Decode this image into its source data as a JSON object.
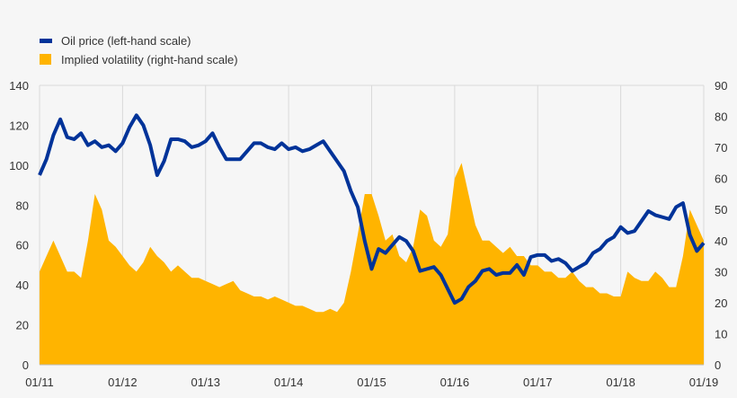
{
  "chart_data": {
    "type": "line+area",
    "title": "",
    "legend_position": "top-left",
    "grid": true,
    "x_tick_labels": [
      "01/11",
      "01/12",
      "01/13",
      "01/14",
      "01/15",
      "01/16",
      "01/17",
      "01/18",
      "01/19"
    ],
    "x_start": "2011-01",
    "x_end": "2019-01",
    "left_axis": {
      "ylim": [
        0,
        140
      ],
      "ticks": [
        "0",
        "20",
        "40",
        "60",
        "80",
        "100",
        "120",
        "140"
      ]
    },
    "right_axis": {
      "ylim": [
        0,
        90
      ],
      "ticks": [
        "0",
        "10",
        "20",
        "30",
        "40",
        "50",
        "60",
        "70",
        "80",
        "90"
      ]
    },
    "series": [
      {
        "name": "Oil price (left-hand scale)",
        "type": "line",
        "axis": "left",
        "color": "#003399",
        "values": [
          95,
          103,
          115,
          123,
          114,
          113,
          116,
          110,
          112,
          109,
          110,
          107,
          111,
          119,
          125,
          120,
          110,
          95,
          102,
          113,
          113,
          112,
          109,
          110,
          112,
          116,
          109,
          103,
          103,
          103,
          107,
          111,
          111,
          109,
          108,
          111,
          108,
          109,
          107,
          108,
          110,
          112,
          107,
          102,
          97,
          87,
          79,
          62,
          48,
          58,
          56,
          60,
          64,
          62,
          57,
          47,
          48,
          49,
          45,
          38,
          31,
          33,
          39,
          42,
          47,
          48,
          45,
          46,
          46,
          50,
          45,
          54,
          55,
          55,
          52,
          53,
          51,
          47,
          49,
          51,
          56,
          58,
          62,
          64,
          69,
          66,
          67,
          72,
          77,
          75,
          74,
          73,
          79,
          81,
          65,
          57,
          61
        ]
      },
      {
        "name": "Implied volatility (right-hand scale)",
        "type": "area",
        "axis": "right",
        "color": "#ffb400",
        "values": [
          30,
          35,
          40,
          35,
          30,
          30,
          28,
          40,
          55,
          50,
          40,
          38,
          35,
          32,
          30,
          33,
          38,
          35,
          33,
          30,
          32,
          30,
          28,
          28,
          27,
          26,
          25,
          26,
          27,
          24,
          23,
          22,
          22,
          21,
          22,
          21,
          20,
          19,
          19,
          18,
          17,
          17,
          18,
          17,
          20,
          30,
          42,
          55,
          55,
          48,
          40,
          42,
          35,
          33,
          38,
          50,
          48,
          40,
          38,
          42,
          60,
          65,
          55,
          45,
          40,
          40,
          38,
          36,
          38,
          35,
          35,
          32,
          32,
          30,
          30,
          28,
          28,
          30,
          27,
          25,
          25,
          23,
          23,
          22,
          22,
          30,
          28,
          27,
          27,
          30,
          28,
          25,
          25,
          35,
          50,
          45,
          40
        ]
      }
    ]
  }
}
